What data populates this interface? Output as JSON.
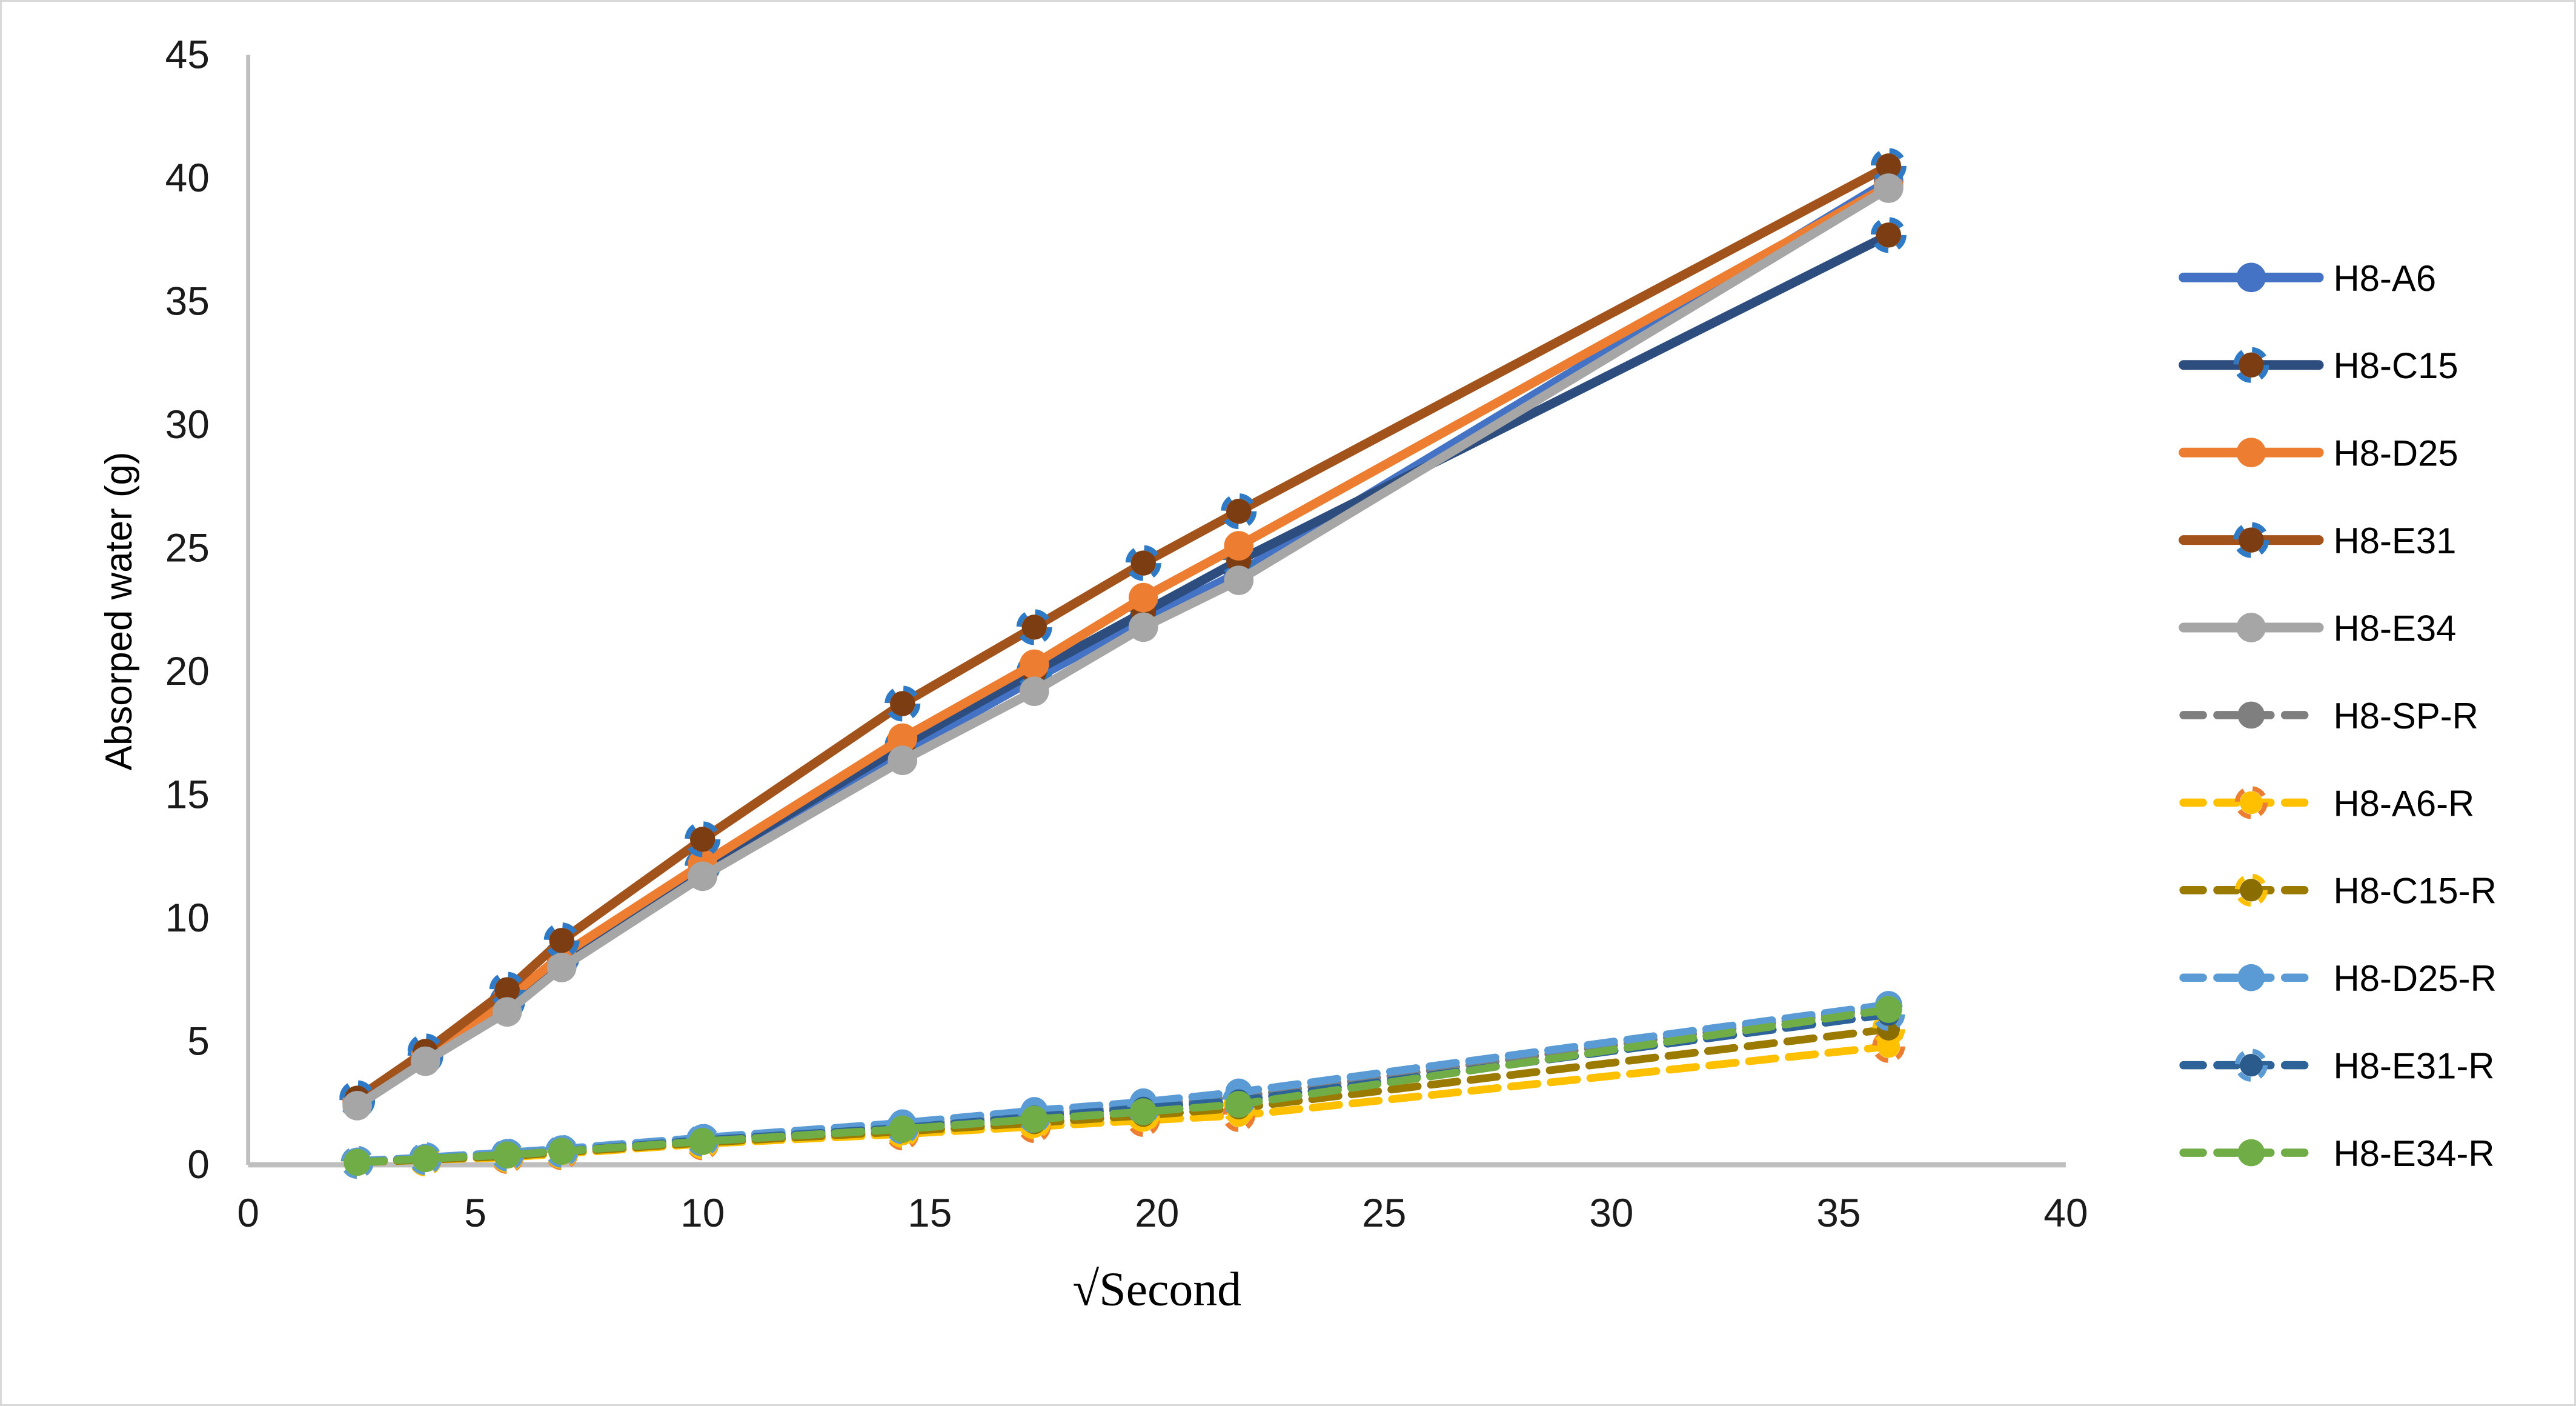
{
  "figure": {
    "background": "#ffffff",
    "frame_color": "#d9d9d9"
  },
  "chart_data": {
    "type": "line",
    "title": "",
    "xlabel": "√Second",
    "ylabel": "Absorped water (g)",
    "xlim": [
      0,
      40
    ],
    "ylim": [
      0,
      45
    ],
    "x_ticks": [
      0,
      5,
      10,
      15,
      20,
      25,
      30,
      35,
      40
    ],
    "y_ticks": [
      0,
      5,
      10,
      15,
      20,
      25,
      30,
      35,
      40,
      45
    ],
    "grid": false,
    "legend_position": "right",
    "axis_color": "#bfbfbf",
    "tick_label_color": "#1a1a1a",
    "text_color": "#000000",
    "x": [
      2.4,
      3.9,
      5.7,
      6.9,
      10.0,
      14.4,
      17.3,
      19.7,
      21.8,
      36.1
    ],
    "series": [
      {
        "name": "H8-A6",
        "line_color": "#4472c4",
        "dash": "solid",
        "marker_fill": "#4472c4",
        "marker_ring": null,
        "values": [
          2.5,
          4.3,
          6.5,
          8.2,
          11.9,
          16.7,
          19.7,
          22.1,
          24.0,
          39.9
        ]
      },
      {
        "name": "H8-C15",
        "line_color": "#2d4d7e",
        "dash": "solid",
        "marker_fill": "#7c3d12",
        "marker_ring": "#2e7ac6",
        "values": [
          2.6,
          4.4,
          6.6,
          8.4,
          12.1,
          17.0,
          20.0,
          22.4,
          24.5,
          37.7
        ]
      },
      {
        "name": "H8-D25",
        "line_color": "#ed7d31",
        "dash": "solid",
        "marker_fill": "#ed7d31",
        "marker_ring": null,
        "values": [
          2.6,
          4.4,
          6.7,
          8.5,
          12.2,
          17.3,
          20.3,
          23.0,
          25.1,
          39.7
        ]
      },
      {
        "name": "H8-E31",
        "line_color": "#a2531c",
        "dash": "solid",
        "marker_fill": "#7c3d12",
        "marker_ring": "#2e7ac6",
        "values": [
          2.7,
          4.6,
          7.1,
          9.1,
          13.2,
          18.7,
          21.8,
          24.4,
          26.5,
          40.5
        ]
      },
      {
        "name": "H8-E34",
        "line_color": "#a6a6a6",
        "dash": "solid",
        "marker_fill": "#a6a6a6",
        "marker_ring": null,
        "values": [
          2.4,
          4.2,
          6.2,
          8.0,
          11.7,
          16.4,
          19.2,
          21.8,
          23.7,
          39.6
        ]
      },
      {
        "name": "H8-SP-R",
        "line_color": "#7f7f7f",
        "dash": "dashed",
        "marker_fill": "#7f7f7f",
        "marker_ring": null,
        "values": [
          0.15,
          0.3,
          0.45,
          0.6,
          1.05,
          1.6,
          2.05,
          2.4,
          2.75,
          6.4
        ]
      },
      {
        "name": "H8-A6-R",
        "line_color": "#ffc000",
        "dash": "dashed",
        "marker_fill": "#ffc000",
        "marker_ring": "#ed7d31",
        "values": [
          0.1,
          0.2,
          0.3,
          0.45,
          0.85,
          1.25,
          1.55,
          1.8,
          2.0,
          4.8
        ]
      },
      {
        "name": "H8-C15-R",
        "line_color": "#9b7a01",
        "dash": "dashed",
        "marker_fill": "#8a6d00",
        "marker_ring": "#ffc000",
        "values": [
          0.1,
          0.2,
          0.35,
          0.5,
          0.9,
          1.35,
          1.7,
          2.0,
          2.3,
          5.5
        ]
      },
      {
        "name": "H8-D25-R",
        "line_color": "#5b9bd5",
        "dash": "dashed",
        "marker_fill": "#5b9bd5",
        "marker_ring": null,
        "values": [
          0.15,
          0.3,
          0.5,
          0.65,
          1.1,
          1.7,
          2.2,
          2.55,
          2.95,
          6.5
        ]
      },
      {
        "name": "H8-E31-R",
        "line_color": "#2e6399",
        "dash": "dashed",
        "marker_fill": "#2b5b8d",
        "marker_ring": "#5b9bd5",
        "values": [
          0.1,
          0.25,
          0.4,
          0.55,
          1.0,
          1.5,
          1.95,
          2.3,
          2.6,
          6.1
        ]
      },
      {
        "name": "H8-E34-R",
        "line_color": "#70ad47",
        "dash": "dashed",
        "marker_fill": "#70ad47",
        "marker_ring": null,
        "values": [
          0.1,
          0.25,
          0.4,
          0.55,
          0.95,
          1.45,
          1.85,
          2.15,
          2.45,
          6.3
        ]
      }
    ]
  }
}
